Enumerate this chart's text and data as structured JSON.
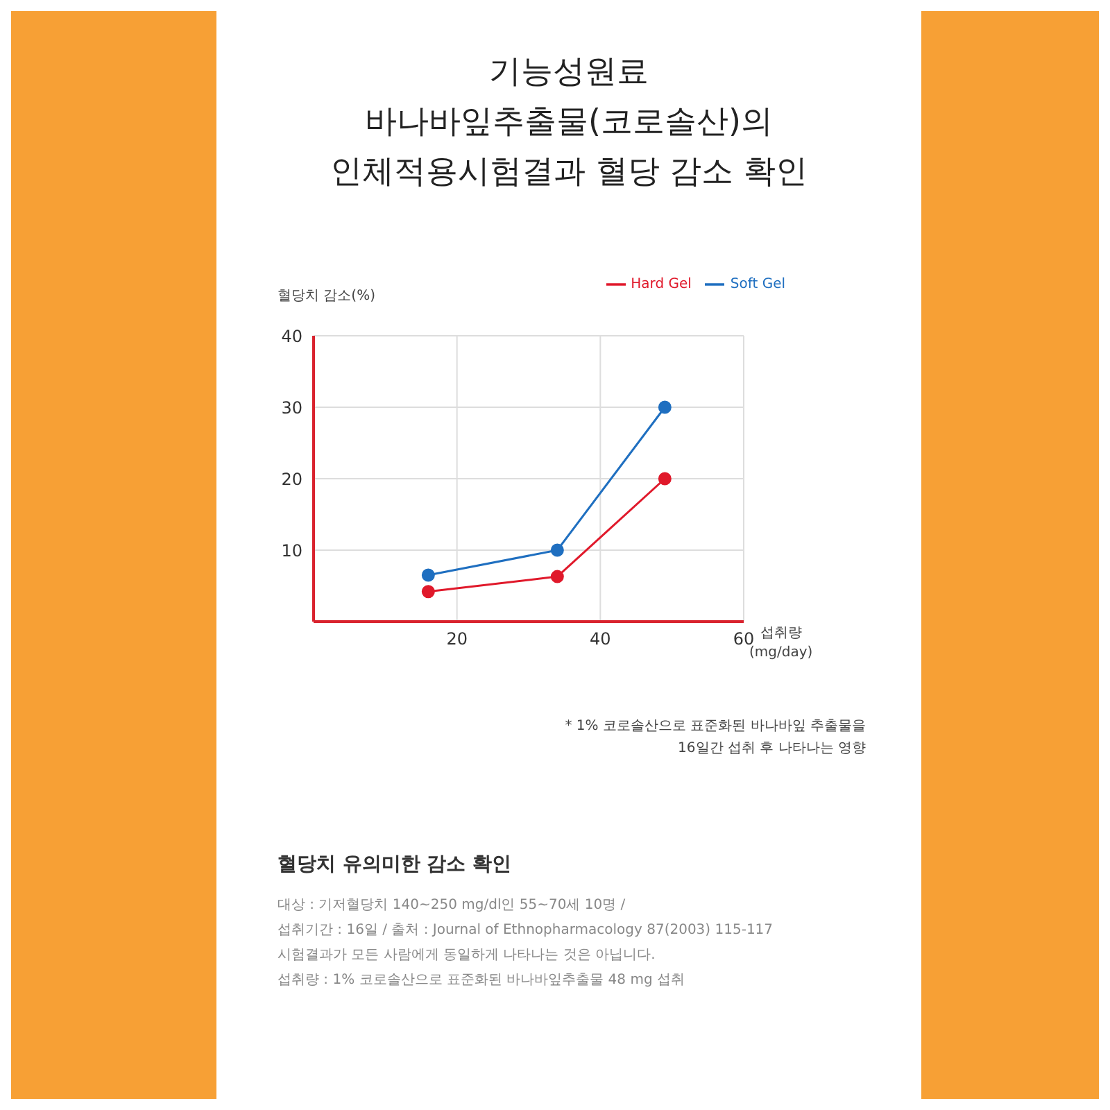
{
  "chart_data": {
    "type": "line",
    "title": "기능성원료\n바나바잎추출물(코로솔산)의\n인체적용시험결과 혈당 감소 확인",
    "subtitle": "혈당치 유의미한 감소 확인",
    "ylabel": "혈당치 감소(%)",
    "xlabel": "섭취량\n(mg/day)",
    "series": [
      {
        "name": "Soft Gel",
        "color": "#1f6fc0",
        "x": [
          16,
          34,
          49
        ],
        "values": [
          6.5,
          10,
          30
        ]
      },
      {
        "name": "Hard Gel",
        "color": "#e0192b",
        "x": [
          16,
          34,
          49
        ],
        "values": [
          4.2,
          6.3,
          20
        ]
      }
    ],
    "xlim": [
      0,
      60
    ],
    "xticks": [
      20,
      40,
      60
    ],
    "ylim": [
      0,
      40
    ],
    "yticks": [
      10,
      20,
      30,
      40
    ],
    "grid": true,
    "legend": "top right",
    "marker": "circle",
    "line_style": "solid",
    "annotations": [
      "* 1% 코로솔산으로 표준화된 바나바잎 추출물을\n16일간 섭취 후 나타나는 영향",
      "대상 : 기저혈당치 140~250 mg/dl인 55~70세 10명 /\n섭취기간 : 16일 / 출처 : Journal of Ethnopharmacology 87(2003) 115-117\n시험결과가 모든 사람에게 동일하게 나타나는 것은 아닙니다.\n섭취량 : 1% 코로솔산으로 표준화된 바나바잎추출물 48 mg 섭취"
    ]
  }
}
